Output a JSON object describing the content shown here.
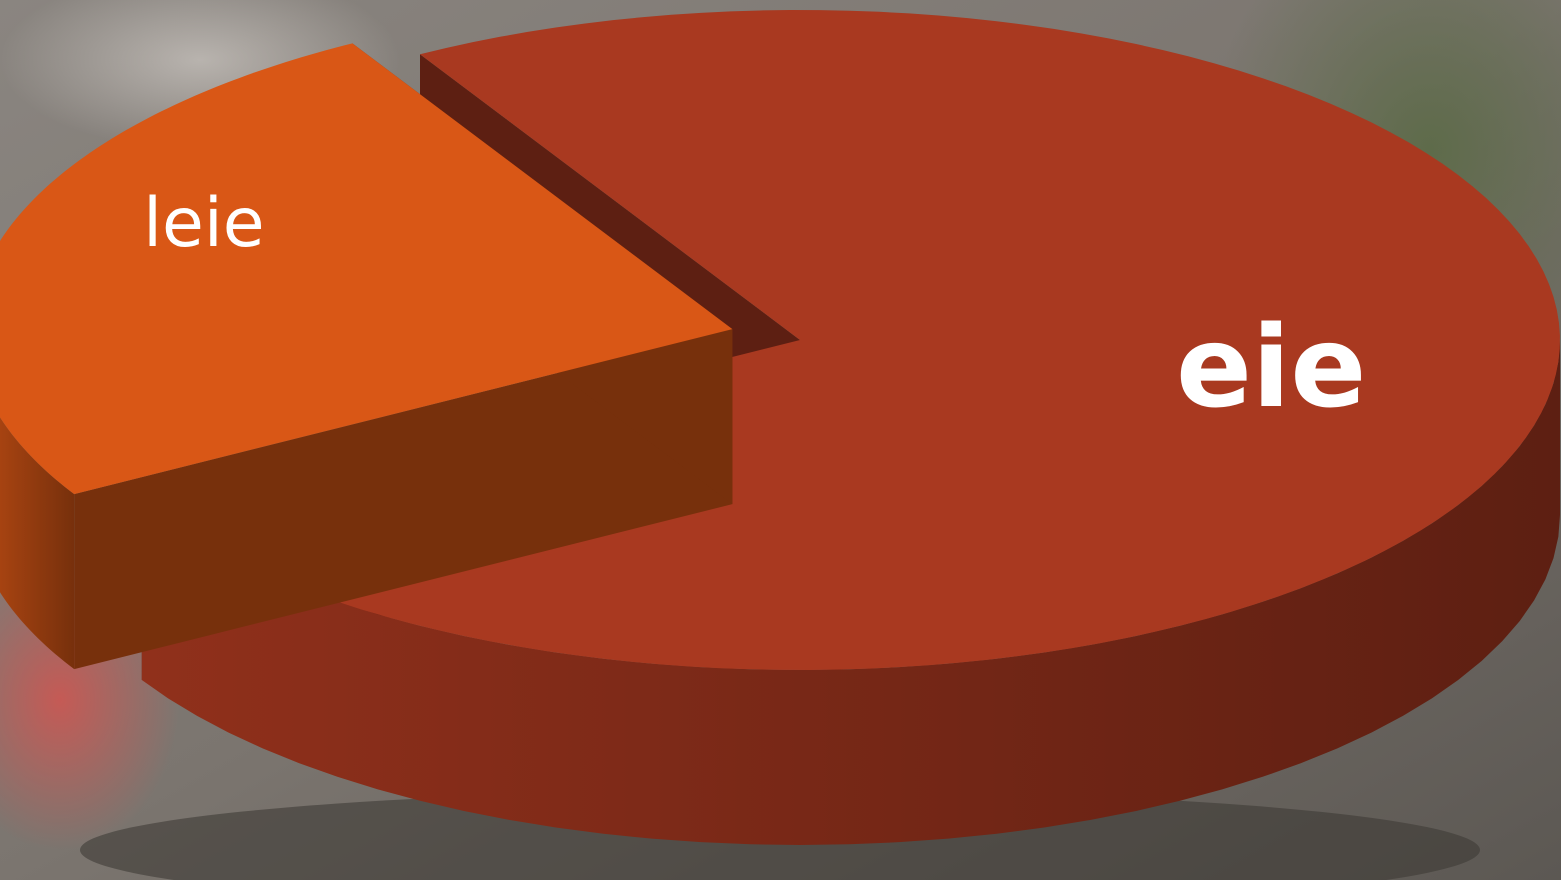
{
  "chart_data": {
    "type": "pie3d",
    "categories": [
      "leie",
      "eie"
    ],
    "values": [
      25,
      75
    ],
    "colors": [
      "#d95716",
      "#a93920"
    ]
  }
}
